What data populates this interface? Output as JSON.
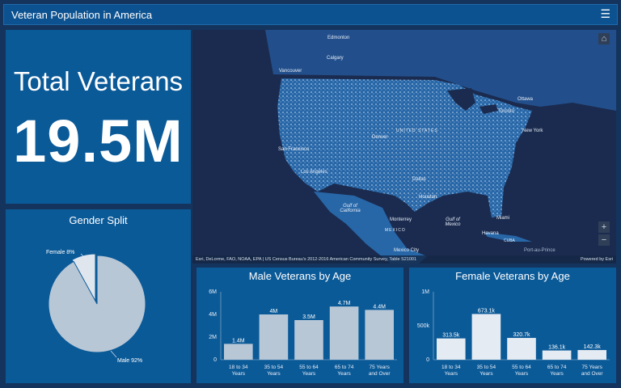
{
  "header": {
    "title": "Veteran Population in America",
    "menu_icon": "hamburger-menu-icon"
  },
  "total": {
    "label": "Total Veterans",
    "value": "19.5M"
  },
  "gender": {
    "title": "Gender Split",
    "chart_data": {
      "type": "pie",
      "slices": [
        {
          "label": "Female 8%",
          "value": 8,
          "color": "#dfe6ee"
        },
        {
          "label": "Male 92%",
          "value": 92,
          "color": "#b8c7d6"
        }
      ]
    }
  },
  "map": {
    "cities": [
      "Edmonton",
      "Calgary",
      "Vancouver",
      "Ottawa",
      "Toronto",
      "New York",
      "UNITED STATES",
      "Denver",
      "San Francisco",
      "Los Angeles",
      "Dallas",
      "Houston",
      "Miami",
      "Gulf of California",
      "Monterrey",
      "Gulf of Mexico",
      "MEXICO",
      "Havana",
      "CUBA",
      "Mexico City",
      "Port-au-Prince"
    ],
    "attribution": "Esri, DeLorme, FAO, NOAA, EPA | US Census Bureau's 2012-2016 American Community Survey, Table S21001",
    "powered": "Powered by Esri",
    "zoom_in": "+",
    "zoom_out": "−",
    "home_icon": "home-icon"
  },
  "chart_data": [
    {
      "type": "bar",
      "title": "Male Veterans by Age",
      "categories": [
        "18 to 34 Years",
        "35 to 54 Years",
        "55 to 64 Years",
        "65 to 74 Years",
        "75 Years and Over"
      ],
      "values": [
        1.4,
        4,
        3.5,
        4.7,
        4.4
      ],
      "data_labels": [
        "1.4M",
        "4M",
        "3.5M",
        "4.7M",
        "4.4M"
      ],
      "ylim": [
        0,
        6
      ],
      "yticks": [
        {
          "v": 0,
          "l": "0"
        },
        {
          "v": 2,
          "l": "2M"
        },
        {
          "v": 4,
          "l": "4M"
        },
        {
          "v": 6,
          "l": "6M"
        }
      ],
      "color": "#b8c7d6",
      "grid": false
    },
    {
      "type": "bar",
      "title": "Female Veterans by Age",
      "categories": [
        "18 to 34 Years",
        "35 to 54 Years",
        "55 to 64 Years",
        "65 to 74 Years",
        "75 Years and Over"
      ],
      "values": [
        313.5,
        673.1,
        320.7,
        136.1,
        142.3
      ],
      "data_labels": [
        "313.5k",
        "673.1k",
        "320.7k",
        "136.1k",
        "142.3k"
      ],
      "ylim": [
        0,
        1000
      ],
      "yticks": [
        {
          "v": 0,
          "l": "0"
        },
        {
          "v": 500,
          "l": "500k"
        },
        {
          "v": 1000,
          "l": "1M"
        }
      ],
      "color": "#e4ebf2",
      "grid": false
    }
  ]
}
